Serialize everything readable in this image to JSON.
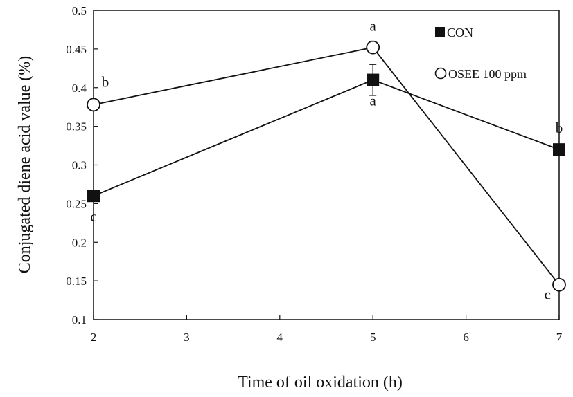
{
  "chart_data": {
    "type": "line",
    "title": "",
    "xlabel": "Time of oil oxidation (h)",
    "ylabel": "Conjugated diene acid value (%)",
    "xlim": [
      2,
      7
    ],
    "ylim": [
      0.1,
      0.5
    ],
    "x_ticks": [
      2,
      3,
      4,
      5,
      6,
      7
    ],
    "y_ticks": [
      0.1,
      0.15,
      0.2,
      0.25,
      0.3,
      0.35,
      0.4,
      0.45,
      0.5
    ],
    "x_tick_labels": [
      "2",
      "3",
      "4",
      "5",
      "6",
      "7"
    ],
    "y_tick_labels": [
      "0.1",
      "0.15",
      "0.2",
      "0.25",
      "0.3",
      "0.35",
      "0.4",
      "0.45",
      "0.5"
    ],
    "grid": false,
    "legend_position": "top-right",
    "series": [
      {
        "name": "CON",
        "marker": "filled-square",
        "color": "#111111",
        "x": [
          2,
          5,
          7
        ],
        "values": [
          0.26,
          0.41,
          0.32
        ],
        "error": [
          0,
          0.02,
          0
        ],
        "labels": [
          "c",
          "a",
          "b"
        ],
        "label_side": [
          "below",
          "below",
          "above"
        ]
      },
      {
        "name": "OSEE 100 ppm",
        "marker": "open-circle",
        "color": "#111111",
        "x": [
          2,
          5,
          7
        ],
        "values": [
          0.378,
          0.452,
          0.145
        ],
        "error": [
          0,
          0,
          0
        ],
        "labels": [
          "b",
          "a",
          "c"
        ],
        "label_side": [
          "above-right",
          "above",
          "below-left"
        ]
      }
    ]
  }
}
